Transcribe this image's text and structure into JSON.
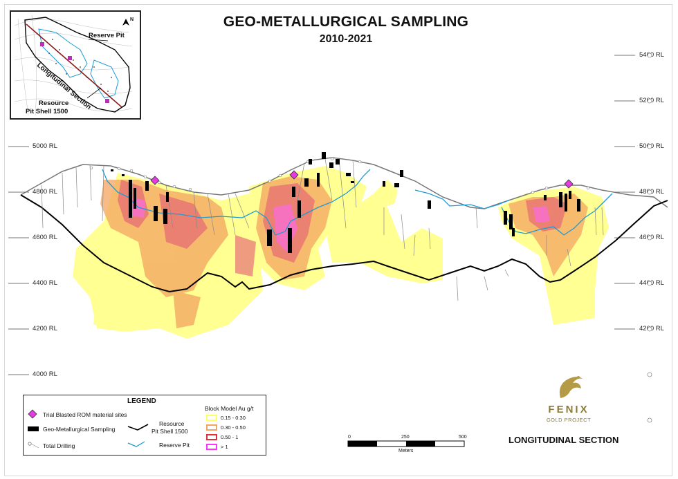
{
  "title": "GEO-METALLURGICAL SAMPLING",
  "subtitle": "2010-2021",
  "rl_labels": [
    "5400 RL",
    "5200 RL",
    "5000 RL",
    "4800 RL",
    "4600 RL",
    "4400 RL",
    "4200 RL",
    "4000 RL"
  ],
  "inset": {
    "reserve_pit": "Reserve Pit",
    "section_line": "Longitudinal Section",
    "resource": "Resource",
    "pit_shell": "Pit Shell 1500",
    "north": "N"
  },
  "legend": {
    "title": "LEGEND",
    "trial": "Trial Blasted ROM material sites",
    "geomet": "Geo-Metallurgical Sampling",
    "drilling": "Total Drilling",
    "resource_line1": "Resource",
    "resource_line2": "Pit Shell 1500",
    "reserve_pit": "Reserve Pit",
    "block_model_title": "Block Model Au g/t",
    "bins": [
      {
        "label": "0.15 - 0.30",
        "color": "#ffff66"
      },
      {
        "label": "0.30 - 0.50",
        "color": "#f4a460"
      },
      {
        "label": "0.50 - 1",
        "color": "#e0303a"
      },
      {
        "label": "> 1",
        "color": "#ff33ff"
      }
    ]
  },
  "scale": {
    "ticks": [
      "0",
      "250",
      "500"
    ],
    "unit": "Meters"
  },
  "logo": {
    "name": "FENIX",
    "sub": "GOLD PROJECT"
  },
  "section_label": "LONGITUDINAL SECTION",
  "colors": {
    "topo": "#777777",
    "pit_shell": "#000000",
    "reserve_pit": "#1c9bd6",
    "trial": "#e23ce0",
    "geomet": "#000000"
  }
}
